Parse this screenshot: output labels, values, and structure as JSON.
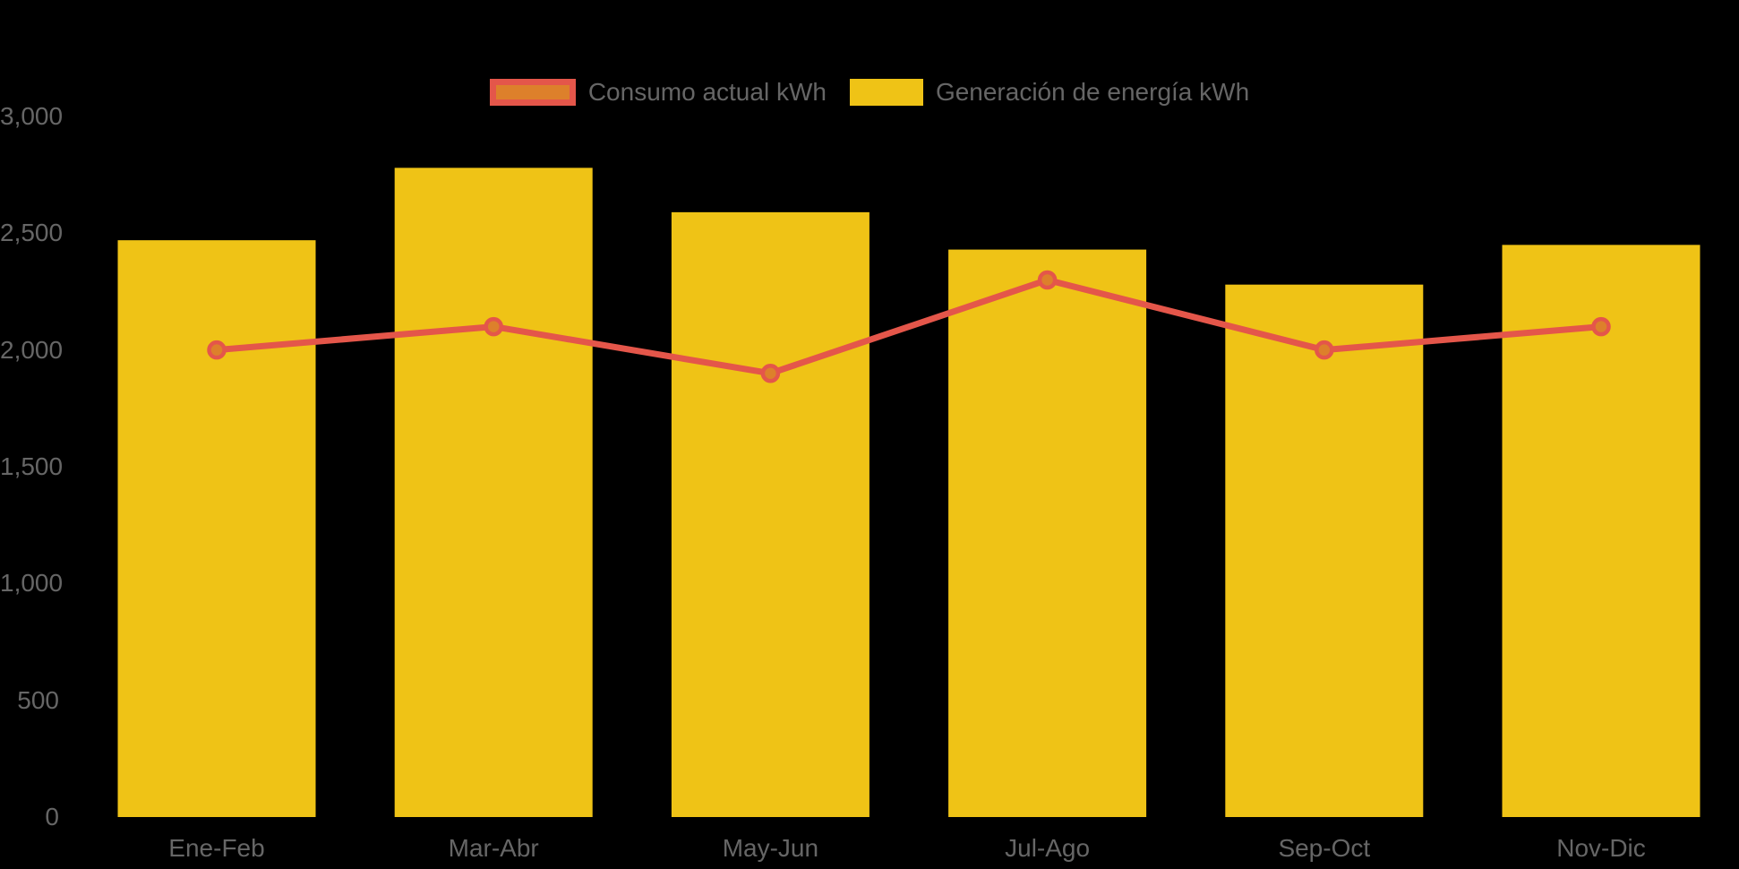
{
  "background_color": "#000000",
  "colors": {
    "bar_yellow": "#EFC316",
    "line_red": "#E4564A",
    "dot_orange": "#DD802B",
    "axis_text_gray": "#666666"
  },
  "legend": {
    "items": [
      {
        "label": "Consumo actual kWh",
        "type": "line"
      },
      {
        "label": "Generación de energía kWh",
        "type": "bar"
      }
    ]
  },
  "chart_data": {
    "type": "combo",
    "categories": [
      "Ene-Feb",
      "Mar-Abr",
      "May-Jun",
      "Jul-Ago",
      "Sep-Oct",
      "Nov-Dic"
    ],
    "series": [
      {
        "name": "Generación de energía kWh",
        "type": "bar",
        "color": "#EFC316",
        "values": [
          2470,
          2780,
          2590,
          2430,
          2280,
          2450
        ]
      },
      {
        "name": "Consumo actual kWh",
        "type": "line",
        "line_color": "#E4564A",
        "point_fill": "#DD802B",
        "values": [
          2000,
          2100,
          1900,
          2300,
          2000,
          2100
        ]
      }
    ],
    "title": "",
    "xlabel": "",
    "ylabel": "",
    "ylim": [
      0,
      3000
    ],
    "grid": false,
    "legend_position": "top-center",
    "y_axis": {
      "ticks": [
        {
          "label": "0",
          "value": 0
        },
        {
          "label": "500",
          "value": 500
        },
        {
          "label": "1,000",
          "value": 1000
        },
        {
          "label": "1,500",
          "value": 1500
        },
        {
          "label": "2,000",
          "value": 2000
        },
        {
          "label": "2,500",
          "value": 2500
        },
        {
          "label": "3,000",
          "value": 3000
        }
      ]
    }
  }
}
